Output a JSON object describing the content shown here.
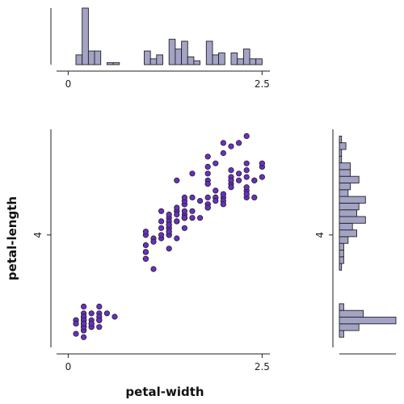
{
  "chart_data": {
    "type": "scatter",
    "title": "",
    "xlabel": "petal-width",
    "ylabel": "petal-length",
    "xlim": [
      -0.15,
      2.6
    ],
    "ylim": [
      0.7,
      7.1
    ],
    "xticks": [
      0,
      2.5
    ],
    "xtick_labels": [
      "0",
      "2.5"
    ],
    "yticks": [
      4
    ],
    "ytick_labels": [
      "4"
    ],
    "grid": false,
    "point_color": "#6a2fc4",
    "hist_color": "#a3a3c6",
    "points": [
      [
        0.2,
        1.4
      ],
      [
        0.2,
        1.4
      ],
      [
        0.2,
        1.3
      ],
      [
        0.2,
        1.5
      ],
      [
        0.2,
        1.4
      ],
      [
        0.4,
        1.7
      ],
      [
        0.3,
        1.4
      ],
      [
        0.2,
        1.5
      ],
      [
        0.2,
        1.4
      ],
      [
        0.1,
        1.5
      ],
      [
        0.2,
        1.5
      ],
      [
        0.2,
        1.6
      ],
      [
        0.1,
        1.4
      ],
      [
        0.1,
        1.1
      ],
      [
        0.2,
        1.2
      ],
      [
        0.4,
        1.5
      ],
      [
        0.4,
        1.3
      ],
      [
        0.3,
        1.4
      ],
      [
        0.3,
        1.7
      ],
      [
        0.3,
        1.5
      ],
      [
        0.2,
        1.7
      ],
      [
        0.4,
        1.5
      ],
      [
        0.2,
        1.0
      ],
      [
        0.5,
        1.7
      ],
      [
        0.2,
        1.9
      ],
      [
        0.2,
        1.6
      ],
      [
        0.4,
        1.6
      ],
      [
        0.2,
        1.5
      ],
      [
        0.2,
        1.4
      ],
      [
        0.2,
        1.6
      ],
      [
        0.2,
        1.6
      ],
      [
        0.4,
        1.5
      ],
      [
        0.1,
        1.5
      ],
      [
        0.2,
        1.4
      ],
      [
        0.2,
        1.5
      ],
      [
        0.2,
        1.2
      ],
      [
        0.2,
        1.3
      ],
      [
        0.1,
        1.4
      ],
      [
        0.2,
        1.3
      ],
      [
        0.2,
        1.5
      ],
      [
        0.3,
        1.3
      ],
      [
        0.3,
        1.3
      ],
      [
        0.2,
        1.3
      ],
      [
        0.6,
        1.6
      ],
      [
        0.4,
        1.9
      ],
      [
        0.3,
        1.4
      ],
      [
        0.2,
        1.6
      ],
      [
        0.2,
        1.4
      ],
      [
        0.2,
        1.5
      ],
      [
        0.2,
        1.4
      ],
      [
        1.4,
        4.7
      ],
      [
        1.5,
        4.5
      ],
      [
        1.5,
        4.9
      ],
      [
        1.3,
        4.0
      ],
      [
        1.5,
        4.6
      ],
      [
        1.3,
        4.5
      ],
      [
        1.6,
        4.7
      ],
      [
        1.0,
        3.3
      ],
      [
        1.3,
        4.6
      ],
      [
        1.4,
        3.9
      ],
      [
        1.0,
        3.5
      ],
      [
        1.5,
        4.2
      ],
      [
        1.0,
        4.0
      ],
      [
        1.4,
        4.7
      ],
      [
        1.3,
        3.6
      ],
      [
        1.4,
        4.4
      ],
      [
        1.5,
        4.5
      ],
      [
        1.0,
        4.1
      ],
      [
        1.5,
        4.5
      ],
      [
        1.1,
        3.9
      ],
      [
        1.8,
        4.8
      ],
      [
        1.3,
        4.0
      ],
      [
        1.5,
        4.9
      ],
      [
        1.2,
        4.7
      ],
      [
        1.3,
        4.3
      ],
      [
        1.4,
        4.4
      ],
      [
        1.4,
        4.8
      ],
      [
        1.7,
        5.0
      ],
      [
        1.5,
        4.5
      ],
      [
        1.0,
        3.5
      ],
      [
        1.1,
        3.8
      ],
      [
        1.0,
        3.7
      ],
      [
        1.2,
        3.9
      ],
      [
        1.6,
        5.1
      ],
      [
        1.5,
        4.5
      ],
      [
        1.6,
        4.5
      ],
      [
        1.5,
        4.7
      ],
      [
        1.3,
        4.4
      ],
      [
        1.3,
        4.1
      ],
      [
        1.3,
        4.0
      ],
      [
        1.2,
        4.4
      ],
      [
        1.4,
        4.6
      ],
      [
        1.2,
        4.0
      ],
      [
        1.0,
        3.3
      ],
      [
        1.3,
        4.2
      ],
      [
        1.2,
        4.2
      ],
      [
        1.3,
        4.2
      ],
      [
        1.3,
        4.3
      ],
      [
        1.1,
        3.0
      ],
      [
        1.3,
        4.1
      ],
      [
        2.5,
        6.0
      ],
      [
        1.9,
        5.1
      ],
      [
        2.1,
        5.9
      ],
      [
        1.8,
        5.6
      ],
      [
        2.2,
        5.8
      ],
      [
        2.1,
        6.6
      ],
      [
        1.7,
        4.5
      ],
      [
        1.8,
        6.3
      ],
      [
        1.8,
        5.8
      ],
      [
        2.5,
        6.1
      ],
      [
        2.0,
        5.1
      ],
      [
        1.9,
        5.3
      ],
      [
        2.1,
        5.5
      ],
      [
        2.0,
        5.0
      ],
      [
        2.4,
        5.1
      ],
      [
        2.3,
        5.3
      ],
      [
        1.8,
        5.5
      ],
      [
        2.2,
        6.7
      ],
      [
        2.3,
        6.9
      ],
      [
        1.5,
        5.0
      ],
      [
        2.3,
        5.7
      ],
      [
        2.0,
        4.9
      ],
      [
        2.0,
        6.7
      ],
      [
        1.8,
        4.9
      ],
      [
        2.1,
        5.7
      ],
      [
        1.8,
        6.0
      ],
      [
        1.8,
        4.8
      ],
      [
        1.8,
        4.9
      ],
      [
        2.1,
        5.6
      ],
      [
        1.6,
        5.8
      ],
      [
        1.9,
        6.1
      ],
      [
        2.0,
        6.4
      ],
      [
        2.2,
        5.6
      ],
      [
        1.5,
        5.1
      ],
      [
        1.4,
        5.6
      ],
      [
        2.3,
        6.1
      ],
      [
        2.4,
        5.6
      ],
      [
        1.8,
        5.5
      ],
      [
        1.8,
        4.8
      ],
      [
        2.1,
        5.4
      ],
      [
        2.4,
        5.6
      ],
      [
        2.3,
        5.1
      ],
      [
        1.9,
        5.1
      ],
      [
        2.3,
        5.9
      ],
      [
        2.5,
        5.7
      ],
      [
        2.3,
        5.2
      ],
      [
        1.9,
        5.0
      ],
      [
        2.0,
        5.2
      ],
      [
        2.3,
        5.4
      ],
      [
        1.8,
        5.1
      ]
    ]
  }
}
